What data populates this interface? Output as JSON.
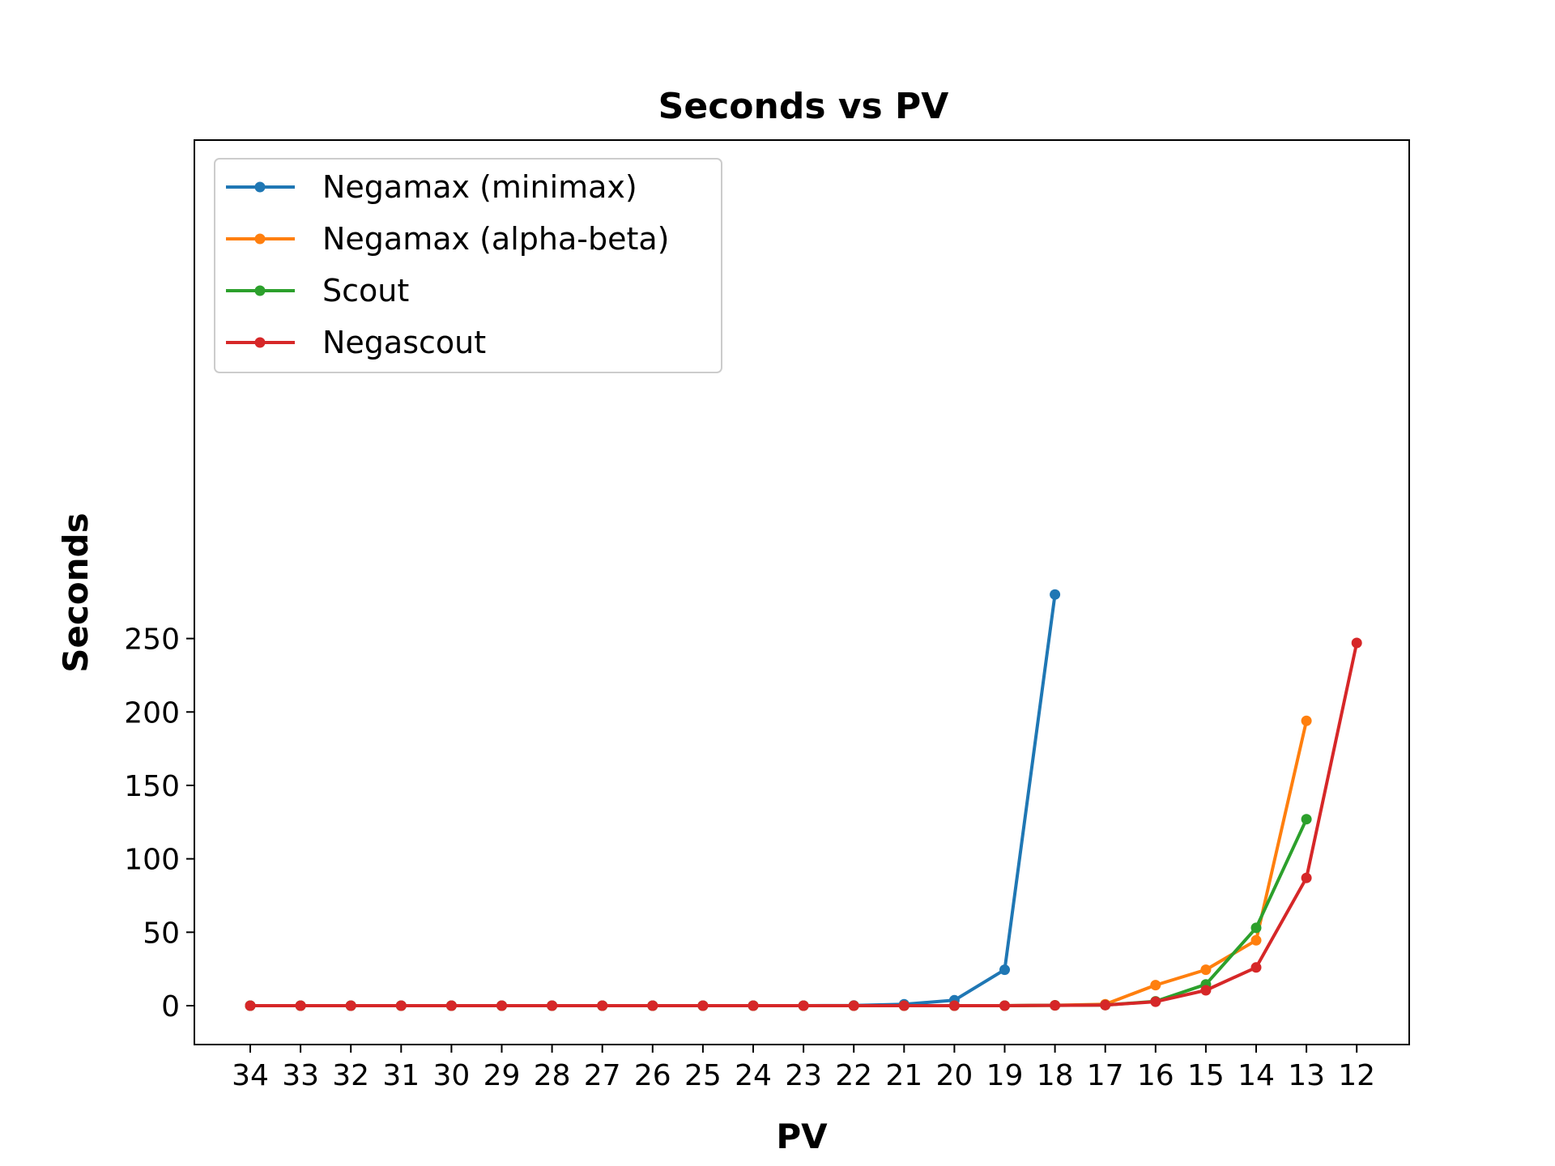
{
  "chart_data": {
    "type": "line",
    "title": "Seconds vs PV",
    "xlabel": "PV",
    "ylabel": "Seconds",
    "categories": [
      "34",
      "33",
      "32",
      "31",
      "30",
      "29",
      "28",
      "27",
      "26",
      "25",
      "24",
      "23",
      "22",
      "21",
      "20",
      "19",
      "18",
      "17",
      "16",
      "15",
      "14",
      "13",
      "12"
    ],
    "ylim": [
      -14,
      294
    ],
    "yticks": [
      0,
      50,
      100,
      150,
      200,
      250
    ],
    "grid": false,
    "legend_position": "top-left",
    "series": [
      {
        "name": "Negamax (minimax)",
        "color": "#1f77b4",
        "values": [
          0,
          0,
          0,
          0,
          0,
          0,
          0,
          0,
          0,
          0,
          0,
          0,
          0.1,
          1,
          3.7,
          24.5,
          280,
          null,
          null,
          null,
          null,
          null,
          null
        ]
      },
      {
        "name": "Negamax (alpha-beta)",
        "color": "#ff7f0e",
        "values": [
          0,
          0,
          0,
          0,
          0,
          0,
          0,
          0,
          0,
          0,
          0,
          0,
          0,
          0,
          0,
          0,
          0.3,
          1,
          14,
          24.5,
          44.5,
          194,
          null
        ]
      },
      {
        "name": "Scout",
        "color": "#2ca02c",
        "values": [
          0,
          0,
          0,
          0,
          0,
          0,
          0,
          0,
          0,
          0,
          0,
          0,
          0,
          0,
          0,
          0,
          0.2,
          0.4,
          3,
          14.5,
          53,
          127,
          null
        ]
      },
      {
        "name": "Negascout",
        "color": "#d62728",
        "values": [
          0,
          0,
          0,
          0,
          0,
          0,
          0,
          0,
          0,
          0,
          0,
          0,
          0,
          0,
          0,
          0,
          0.2,
          0.4,
          2.7,
          10.5,
          26,
          87,
          247
        ]
      }
    ]
  }
}
